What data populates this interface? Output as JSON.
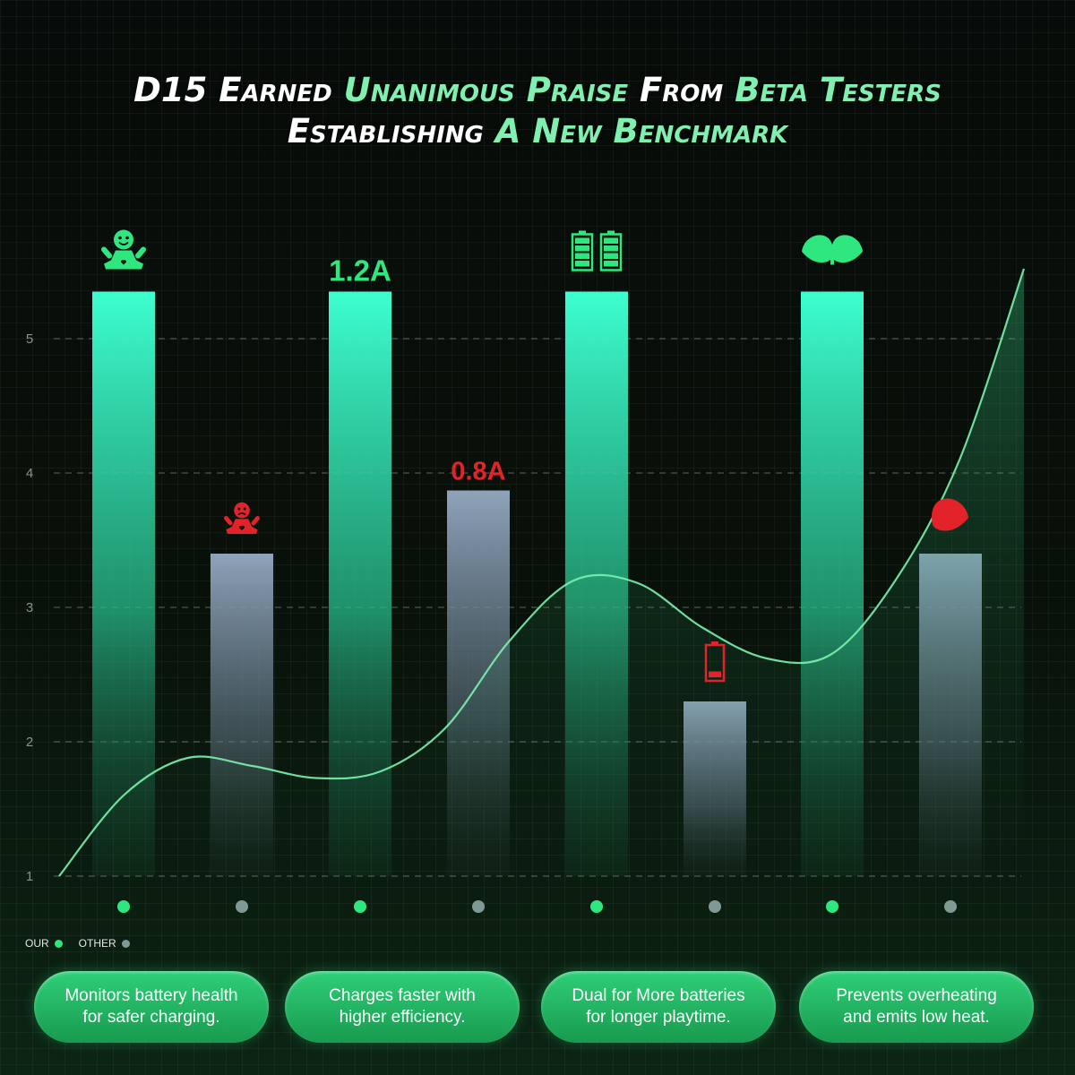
{
  "title": {
    "line1": [
      {
        "text": "D15 Earned ",
        "tone": "w"
      },
      {
        "text": "Unanimous Praise ",
        "tone": "g"
      },
      {
        "text": "From ",
        "tone": "w"
      },
      {
        "text": "Beta Testers",
        "tone": "g"
      }
    ],
    "line2": [
      {
        "text": "Establishing ",
        "tone": "w"
      },
      {
        "text": "A New Benchmark",
        "tone": "g"
      }
    ]
  },
  "legend": {
    "our_label": "OUR",
    "other_label": "OTHER",
    "our_color": "#2ee87f",
    "other_color": "#7f9a95"
  },
  "chart_data": {
    "type": "bar",
    "ylim": [
      1,
      5.4
    ],
    "yticks": [
      1,
      2,
      3,
      4,
      5
    ],
    "grid": true,
    "legend_position": "bottom-left",
    "series": [
      {
        "name": "OUR",
        "color": "#2ee87f",
        "values": [
          5.35,
          5.35,
          5.35,
          5.35
        ]
      },
      {
        "name": "OTHER",
        "color": "#7f9a95",
        "values": [
          3.4,
          3.87,
          2.3,
          3.4
        ]
      }
    ],
    "bar_labels": [
      {
        "icon": "happy-face-icon",
        "text": "",
        "tone": "good"
      },
      {
        "icon": "sad-face-icon",
        "text": "",
        "tone": "bad"
      },
      {
        "icon": "",
        "text": "1.2A",
        "tone": "good"
      },
      {
        "icon": "",
        "text": "0.8A",
        "tone": "bad"
      },
      {
        "icon": "dual-battery-icon",
        "text": "",
        "tone": "good"
      },
      {
        "icon": "low-battery-icon",
        "text": "",
        "tone": "bad"
      },
      {
        "icon": "leaf-icon",
        "text": "",
        "tone": "good"
      },
      {
        "icon": "single-leaf-icon",
        "text": "",
        "tone": "bad"
      }
    ],
    "trend_line": {
      "x": [
        0,
        0.5,
        1,
        1.5,
        2,
        2.5,
        3,
        3.5,
        4,
        4.5,
        5,
        5.5,
        6,
        6.5,
        7,
        7.5
      ],
      "y": [
        1.0,
        1.6,
        1.88,
        1.82,
        1.73,
        1.78,
        2.1,
        2.75,
        3.2,
        3.18,
        2.85,
        2.62,
        2.65,
        3.2,
        4.1,
        5.52
      ]
    }
  },
  "colors": {
    "good": "#2ee87f",
    "bad": "#e3232a"
  },
  "features": [
    {
      "line1": "Monitors battery health",
      "line2": "for safer charging."
    },
    {
      "line1": "Charges faster with",
      "line2": "higher efficiency."
    },
    {
      "line1": "Dual for More batteries",
      "line2": "for longer playtime."
    },
    {
      "line1": "Prevents overheating",
      "line2": "and emits low heat."
    }
  ]
}
